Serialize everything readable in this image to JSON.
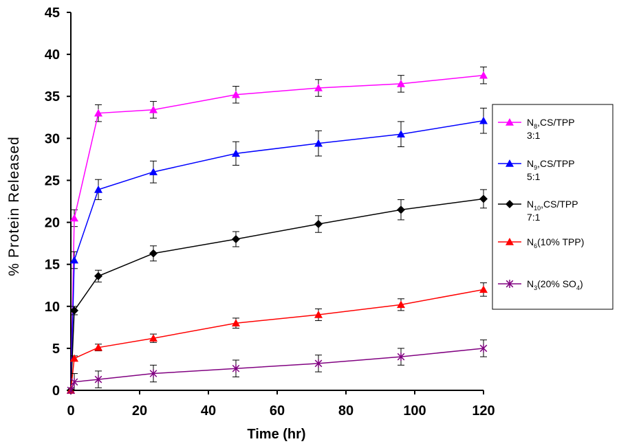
{
  "chart_data": {
    "type": "line",
    "title": "",
    "xlabel": "Time (hr)",
    "ylabel": "% Protein Released",
    "xlim": [
      0,
      120
    ],
    "ylim": [
      0,
      45
    ],
    "x_ticks": [
      0,
      20,
      40,
      60,
      80,
      100,
      120
    ],
    "y_ticks": [
      0,
      5,
      10,
      15,
      20,
      25,
      30,
      35,
      40,
      45
    ],
    "grid": false,
    "legend_position": "right",
    "x": [
      0,
      1,
      8,
      24,
      48,
      72,
      96,
      120
    ],
    "series": [
      {
        "name": "N8,CS/TPP 3:1",
        "legend": {
          "base": "N",
          "sub": "8",
          "text": ",CS/TPP",
          "line2": "3:1"
        },
        "color": "#ff00ff",
        "marker": "triangle",
        "values": [
          0,
          20.5,
          33.0,
          33.4,
          35.2,
          36.0,
          36.5,
          37.5
        ],
        "errors": [
          0,
          1.0,
          1.0,
          1.0,
          1.0,
          1.0,
          1.0,
          1.0
        ]
      },
      {
        "name": "N9,CS/TPP 5:1",
        "legend": {
          "base": "N",
          "sub": "9",
          "text": ",CS/TPP",
          "line2": "5:1"
        },
        "color": "#0000ff",
        "marker": "triangle",
        "values": [
          0,
          15.5,
          23.9,
          26.0,
          28.2,
          29.4,
          30.5,
          32.1
        ],
        "errors": [
          0,
          1.0,
          1.2,
          1.3,
          1.4,
          1.5,
          1.5,
          1.5
        ]
      },
      {
        "name": "N10,CS/TPP 7:1",
        "legend": {
          "base": "N",
          "sub": "10",
          "text": ",CS/TPP",
          "line2": "7:1"
        },
        "color": "#000000",
        "marker": "diamond",
        "values": [
          0,
          9.5,
          13.6,
          16.3,
          18.0,
          19.8,
          21.5,
          22.8
        ],
        "errors": [
          0,
          0.5,
          0.7,
          0.9,
          0.9,
          1.0,
          1.2,
          1.1
        ]
      },
      {
        "name": "N6(10% TPP)",
        "legend": {
          "base": "N",
          "sub": "6",
          "text": "(10% TPP)",
          "line2": ""
        },
        "color": "#ff0000",
        "marker": "triangle",
        "values": [
          0,
          3.8,
          5.1,
          6.2,
          8.0,
          9.0,
          10.2,
          12.0
        ],
        "errors": [
          0,
          0.3,
          0.4,
          0.5,
          0.6,
          0.7,
          0.7,
          0.8
        ]
      },
      {
        "name": "N3(20% SO4)",
        "legend": {
          "base": "N",
          "sub": "3",
          "text": "(20% SO",
          "sub2": "4",
          "text2": ")",
          "line2": ""
        },
        "color": "#800080",
        "marker": "star",
        "values": [
          0,
          1.0,
          1.3,
          2.0,
          2.6,
          3.2,
          4.0,
          5.0
        ],
        "errors": [
          0,
          1.0,
          1.0,
          1.0,
          1.0,
          1.0,
          1.0,
          1.0
        ]
      }
    ]
  }
}
